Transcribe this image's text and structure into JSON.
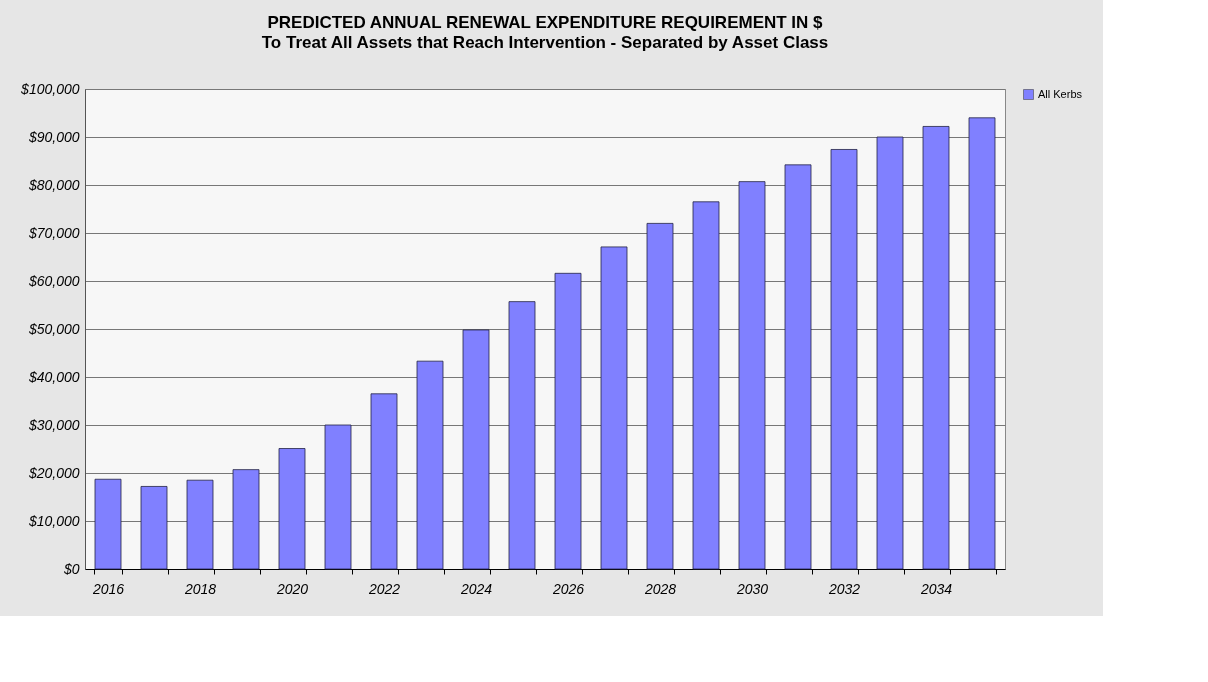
{
  "chart_data": {
    "type": "bar",
    "title": "PREDICTED ANNUAL RENEWAL EXPENDITURE REQUIREMENT IN $",
    "subtitle": "To Treat All Assets that Reach Intervention - Separated by Asset Class",
    "categories": [
      "2016",
      null,
      "2018",
      null,
      "2020",
      null,
      "2022",
      null,
      "2024",
      null,
      "2026",
      null,
      "2028",
      null,
      "2030",
      null,
      "2032",
      null,
      "2034",
      null
    ],
    "series": [
      {
        "name": "All Kerbs",
        "color": "#8080ff",
        "values": [
          18700,
          17200,
          18500,
          20700,
          25100,
          30000,
          36500,
          43300,
          49800,
          55700,
          61600,
          67100,
          72000,
          76500,
          80700,
          84200,
          87400,
          90000,
          92200,
          94000
        ]
      }
    ],
    "ylim": [
      0,
      100000
    ],
    "yticks": [
      {
        "value": 0,
        "label": "$0"
      },
      {
        "value": 10000,
        "label": "$10,000"
      },
      {
        "value": 20000,
        "label": "$20,000"
      },
      {
        "value": 30000,
        "label": "$30,000"
      },
      {
        "value": 40000,
        "label": "$40,000"
      },
      {
        "value": 50000,
        "label": "$50,000"
      },
      {
        "value": 60000,
        "label": "$60,000"
      },
      {
        "value": 70000,
        "label": "$70,000"
      },
      {
        "value": 80000,
        "label": "$80,000"
      },
      {
        "value": 90000,
        "label": "$90,000"
      },
      {
        "value": 100000,
        "label": "$100,000"
      }
    ],
    "grid": "y",
    "legend": "right"
  }
}
